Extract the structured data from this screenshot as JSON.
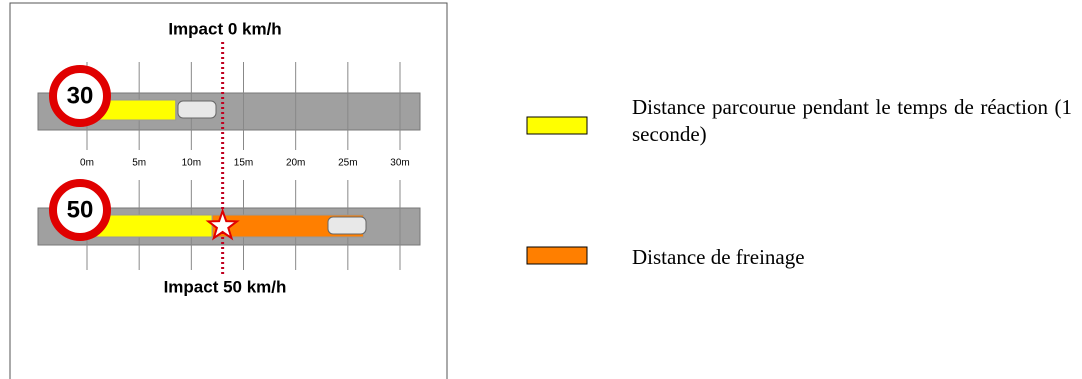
{
  "chart_data": {
    "type": "bar",
    "orientation": "horizontal",
    "stacked": true,
    "categories": [
      "30",
      "50"
    ],
    "series": [
      {
        "name": "Distance parcourue pendant le temps de réaction (1 seconde)",
        "color": "#ffff00",
        "values": [
          8.5,
          12
        ]
      },
      {
        "name": "Distance de freinage",
        "color": "#ff7f00",
        "values": [
          null,
          14.5
        ]
      }
    ],
    "xlim": [
      0,
      30
    ],
    "xticks": [
      {
        "value": 0,
        "label": "0m"
      },
      {
        "value": 5,
        "label": "5m"
      },
      {
        "value": 10,
        "label": "10m"
      },
      {
        "value": 15,
        "label": "15m"
      },
      {
        "value": 20,
        "label": "20m"
      },
      {
        "value": 25,
        "label": "25m"
      },
      {
        "value": 30,
        "label": "30m"
      }
    ],
    "impact": 13,
    "annotations": [
      "Impact 0 km/h",
      "Impact 50 km/h"
    ],
    "legend": "right"
  }
}
